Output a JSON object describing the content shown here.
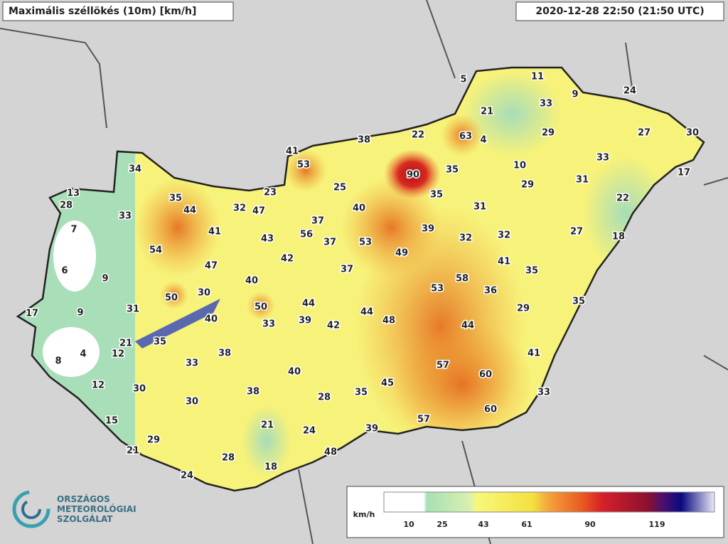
{
  "header": {
    "title": "Maximális széllökés (10m) [km/h]",
    "time": "2020-12-28 22:50 (21:50 UTC)"
  },
  "stations": [
    34,
    13,
    28,
    35,
    44,
    33,
    7,
    32,
    47,
    23,
    41,
    53,
    38,
    22,
    63,
    4,
    5,
    11,
    9,
    24,
    33,
    21,
    29,
    27,
    30,
    33,
    17,
    10,
    29,
    31,
    22,
    90,
    35,
    35,
    31,
    25,
    40,
    41,
    43,
    37,
    56,
    37,
    53,
    39,
    32,
    32,
    27,
    18,
    54,
    47,
    42,
    37,
    49,
    41,
    35,
    6,
    9,
    40,
    53,
    58,
    36,
    50,
    30,
    50,
    44,
    17,
    9,
    31,
    40,
    33,
    39,
    44,
    48,
    42,
    44,
    29,
    35,
    21,
    35,
    4,
    12,
    8,
    38,
    33,
    40,
    57,
    60,
    41,
    12,
    30,
    38,
    28,
    35,
    45,
    33,
    30,
    60,
    15,
    57,
    21,
    24,
    39,
    29,
    21,
    28,
    48,
    18,
    24
  ],
  "legend": {
    "unit": "km/h",
    "ticks": [
      10,
      25,
      43,
      61,
      90,
      119
    ]
  },
  "logo": {
    "lines": [
      "ORSZÁGOS",
      "METEOROLÓGIAI",
      "SZOLGÁLAT"
    ]
  }
}
